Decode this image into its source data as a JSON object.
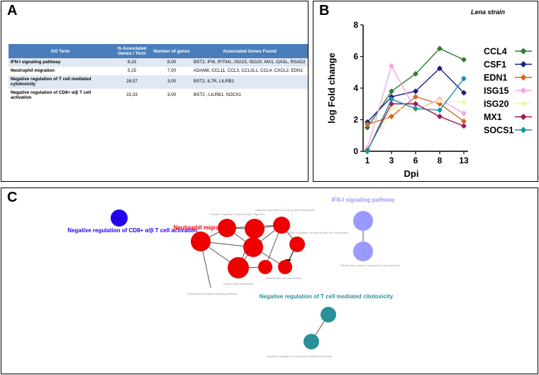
{
  "panelA": {
    "label": "A",
    "headers": [
      "GO Term",
      "% Associated Genes / Term",
      "Number of genes",
      "Associated Genes Found"
    ],
    "rows": [
      {
        "term": "IFN-I signaling pathway",
        "pct": "8,33",
        "num": "8,00",
        "genes": "BST2, IFI6, IFITM1, ISG15, ISG20, MX1, OASL, RSAD2"
      },
      {
        "term": "Neutrophil migration",
        "pct": "5,15",
        "num": "7,00",
        "genes": "ADAM8, CCL11, CCL3, CCL3L1, CCL4, CXCL2, EDN1"
      },
      {
        "term": "Negative regulation of T cell mediated cytotoxicity",
        "pct": "28,57",
        "num": "3,00",
        "genes": "BST2, IL7R, LILRB1"
      },
      {
        "term": "Negative regulation of CD8+ α/β T cell activation",
        "pct": "33,33",
        "num": "3,00",
        "genes": "BST2 , LILRB1, SOCS1"
      }
    ]
  },
  "panelB": {
    "label": "B",
    "strain_label": "Lena strain",
    "xlabel": "Dpi",
    "ylabel": "log Fold change"
  },
  "chart_data": {
    "type": "line",
    "title": "Lena strain",
    "xlabel": "Dpi",
    "ylabel": "log Fold change",
    "categories": [
      "1",
      "3",
      "6",
      "8",
      "13"
    ],
    "ylim": [
      0,
      8
    ],
    "yticks": [
      "0",
      "2",
      "4",
      "6",
      "8"
    ],
    "series": [
      {
        "name": "CCL4",
        "color": "#2e7d32",
        "marker": "diamond",
        "values": [
          1.5,
          3.8,
          4.9,
          6.5,
          5.8
        ]
      },
      {
        "name": "CSF1",
        "color": "#1a1a8c",
        "marker": "diamond",
        "values": [
          1.85,
          3.45,
          3.8,
          5.25,
          3.7
        ]
      },
      {
        "name": "EDN1",
        "color": "#d2691e",
        "marker": "diamond",
        "values": [
          1.7,
          2.2,
          3.45,
          3.0,
          1.9
        ]
      },
      {
        "name": "ISG15",
        "color": "#f2a6e6",
        "marker": "diamond",
        "values": [
          0.2,
          5.4,
          2.6,
          3.3,
          2.4
        ]
      },
      {
        "name": "ISG20",
        "color": "#f7f3a0",
        "marker": "diamond",
        "values": [
          0.1,
          2.7,
          2.6,
          3.2,
          3.1
        ]
      },
      {
        "name": "MX1",
        "color": "#a0185a",
        "marker": "diamond",
        "values": [
          0.05,
          3.0,
          3.0,
          2.2,
          1.6
        ]
      },
      {
        "name": "SOCS1",
        "color": "#1e8fa8",
        "marker": "diamond",
        "values": [
          0.0,
          3.3,
          2.7,
          2.6,
          4.6
        ]
      }
    ]
  },
  "panelC": {
    "label": "C",
    "colors": {
      "cd8": "#2200ee",
      "neutrophil": "#ee0000",
      "ifn": "#9999ff",
      "tcell": "#2a8f96"
    },
    "groups": {
      "cd8": "Negative regulation of CD8+ α/β T cell activation",
      "neutrophil": "Neutrophil migration",
      "ifn": "IFN-I signaling pathway",
      "tcell": "Negative regulation of T cell mediated citotoxicity"
    },
    "node_labels": {
      "pos_lymph": "Positive regulation of lymphocyte migration",
      "neg_viral": "Negative regulation by host of viral transcription",
      "pos_nk": "Positive regulation of natural killer cell chemotaxis",
      "lymph_chemo": "Lymphocyte chemotaxis",
      "nk_chemo": "Natural killer cell chemotaxis",
      "chemokine": "Chemokine-mediated signaling pathway",
      "replication": "Replication negative regulation of viral genome",
      "leukocyte": "Negative regulation of leukocyte mediated immunity"
    }
  }
}
